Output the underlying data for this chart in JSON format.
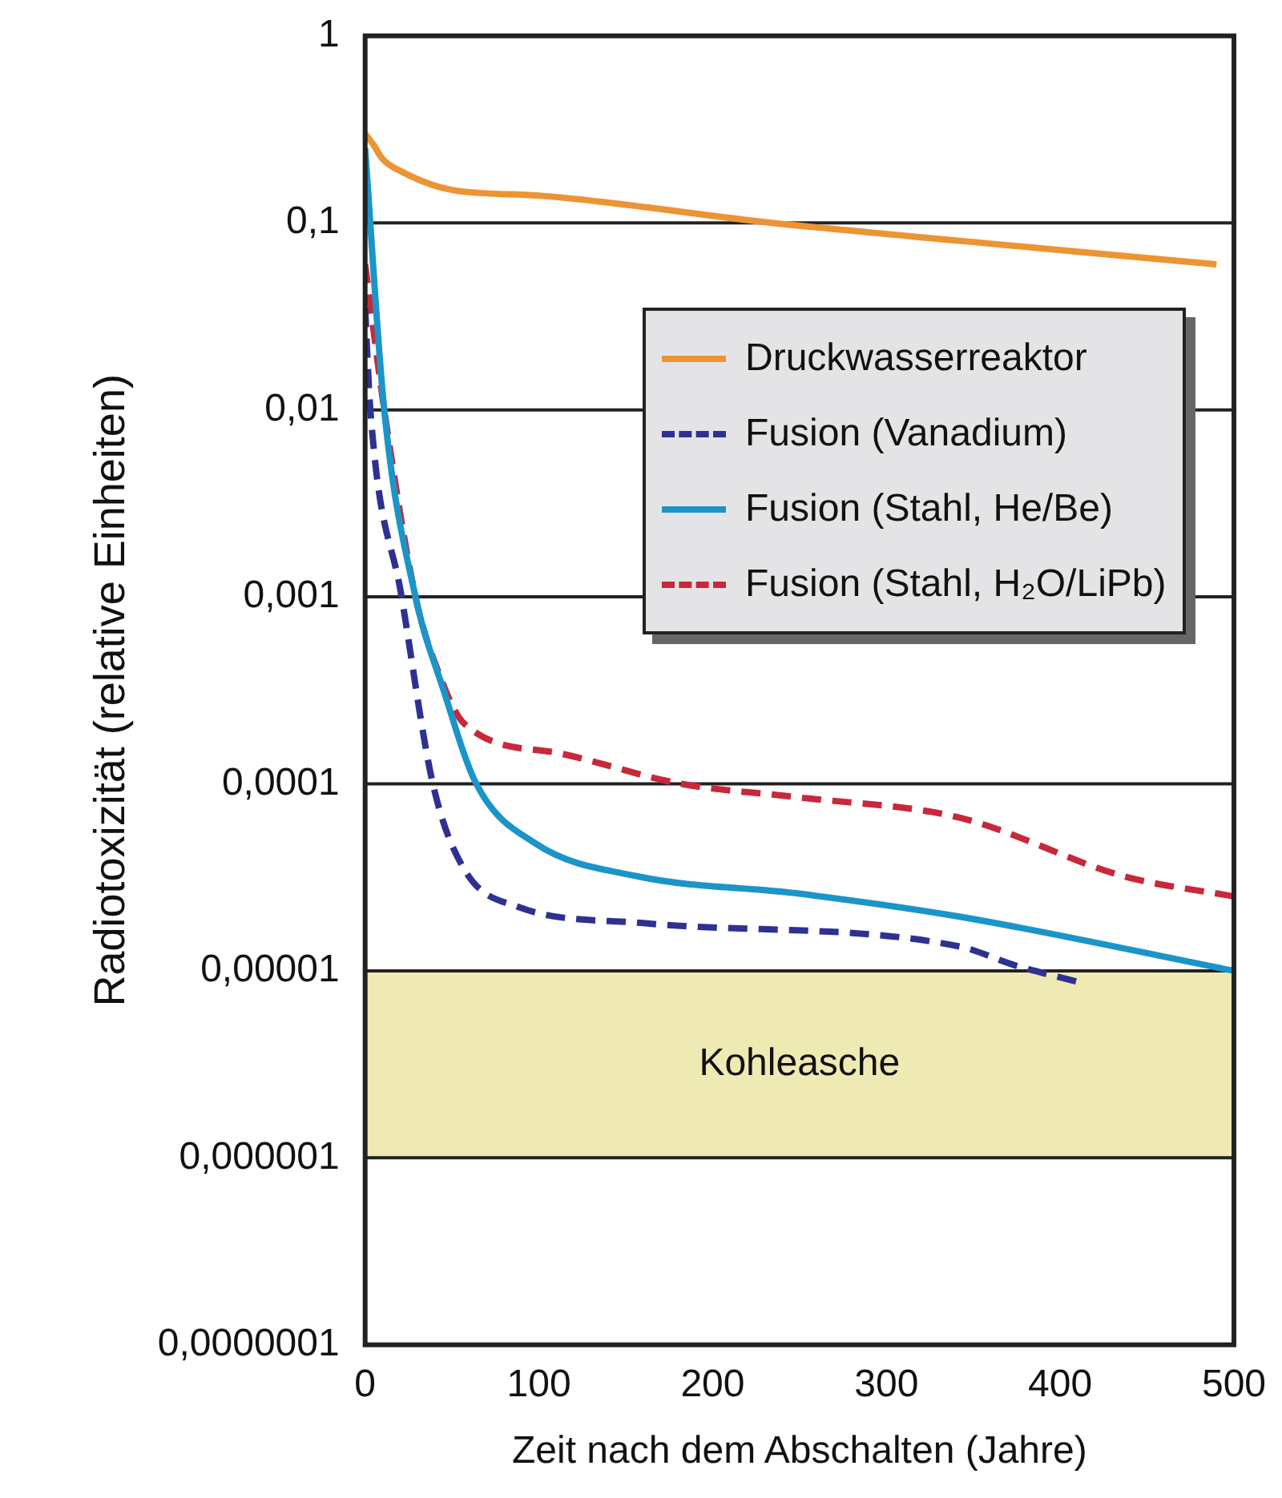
{
  "chart_data": {
    "type": "line",
    "xlabel": "Zeit nach dem Abschalten (Jahre)",
    "ylabel": "Radiotoxizität (relative Einheiten)",
    "log": "y",
    "xlim": [
      0,
      500
    ],
    "xticks": [
      0,
      100,
      200,
      300,
      400,
      500
    ],
    "ylim": [
      1e-07,
      1
    ],
    "yticks": [
      {
        "value": 1,
        "label": "1"
      },
      {
        "value": 0.1,
        "label": "0,1"
      },
      {
        "value": 0.01,
        "label": "0,01"
      },
      {
        "value": 0.001,
        "label": "0,001"
      },
      {
        "value": 0.0001,
        "label": "0,0001"
      },
      {
        "value": 1e-05,
        "label": "0,00001"
      },
      {
        "value": 1e-06,
        "label": "0,000001"
      },
      {
        "value": 1e-07,
        "label": "0,0000001"
      }
    ],
    "grid": "y",
    "legend": "top right",
    "bands": [
      {
        "axis": "y",
        "from": 1e-06,
        "to": 1e-05,
        "label": "Kohleasche",
        "color": "#efe9b4"
      }
    ],
    "series": [
      {
        "name": "Druckwasserreaktor",
        "color": "#ec9434",
        "line_style": "solid",
        "x": [
          0,
          5,
          10,
          20,
          50,
          100,
          234,
          350,
          490
        ],
        "values": [
          0.3,
          0.26,
          0.22,
          0.19,
          0.15,
          0.14,
          0.1,
          0.079,
          0.06
        ]
      },
      {
        "name": "Fusion (Vanadium)",
        "color": "#2e3192",
        "line_style": "dashed",
        "x": [
          0,
          3,
          21,
          39,
          57,
          88,
          160,
          342,
          374,
          411
        ],
        "values": [
          0.035,
          0.01,
          0.001,
          0.0001,
          3.5e-05,
          2.2e-05,
          1.8e-05,
          1.35e-05,
          1.07e-05,
          8.7e-06
        ]
      },
      {
        "name": "Fusion (Stahl, He/Be)",
        "color": "#1b95c9",
        "line_style": "solid",
        "x": [
          0,
          11,
          29,
          45,
          64,
          98,
          157,
          248,
          342,
          500
        ],
        "values": [
          0.25,
          0.01,
          0.001,
          0.00032,
          0.0001,
          4.8e-05,
          3.2e-05,
          2.6e-05,
          1.95e-05,
          1e-05
        ]
      },
      {
        "name": "Fusion (Stahl, H₂O/LiPb)",
        "color": "#c8283c",
        "line_style": "dashed",
        "x": [
          0,
          11,
          29,
          42,
          57,
          113,
          182,
          248,
          342,
          437,
          500
        ],
        "values": [
          0.06,
          0.01,
          0.001,
          0.0004,
          0.00021,
          0.000145,
          0.0001,
          8.5e-05,
          6.6e-05,
          3.2e-05,
          2.5e-05
        ]
      }
    ]
  }
}
